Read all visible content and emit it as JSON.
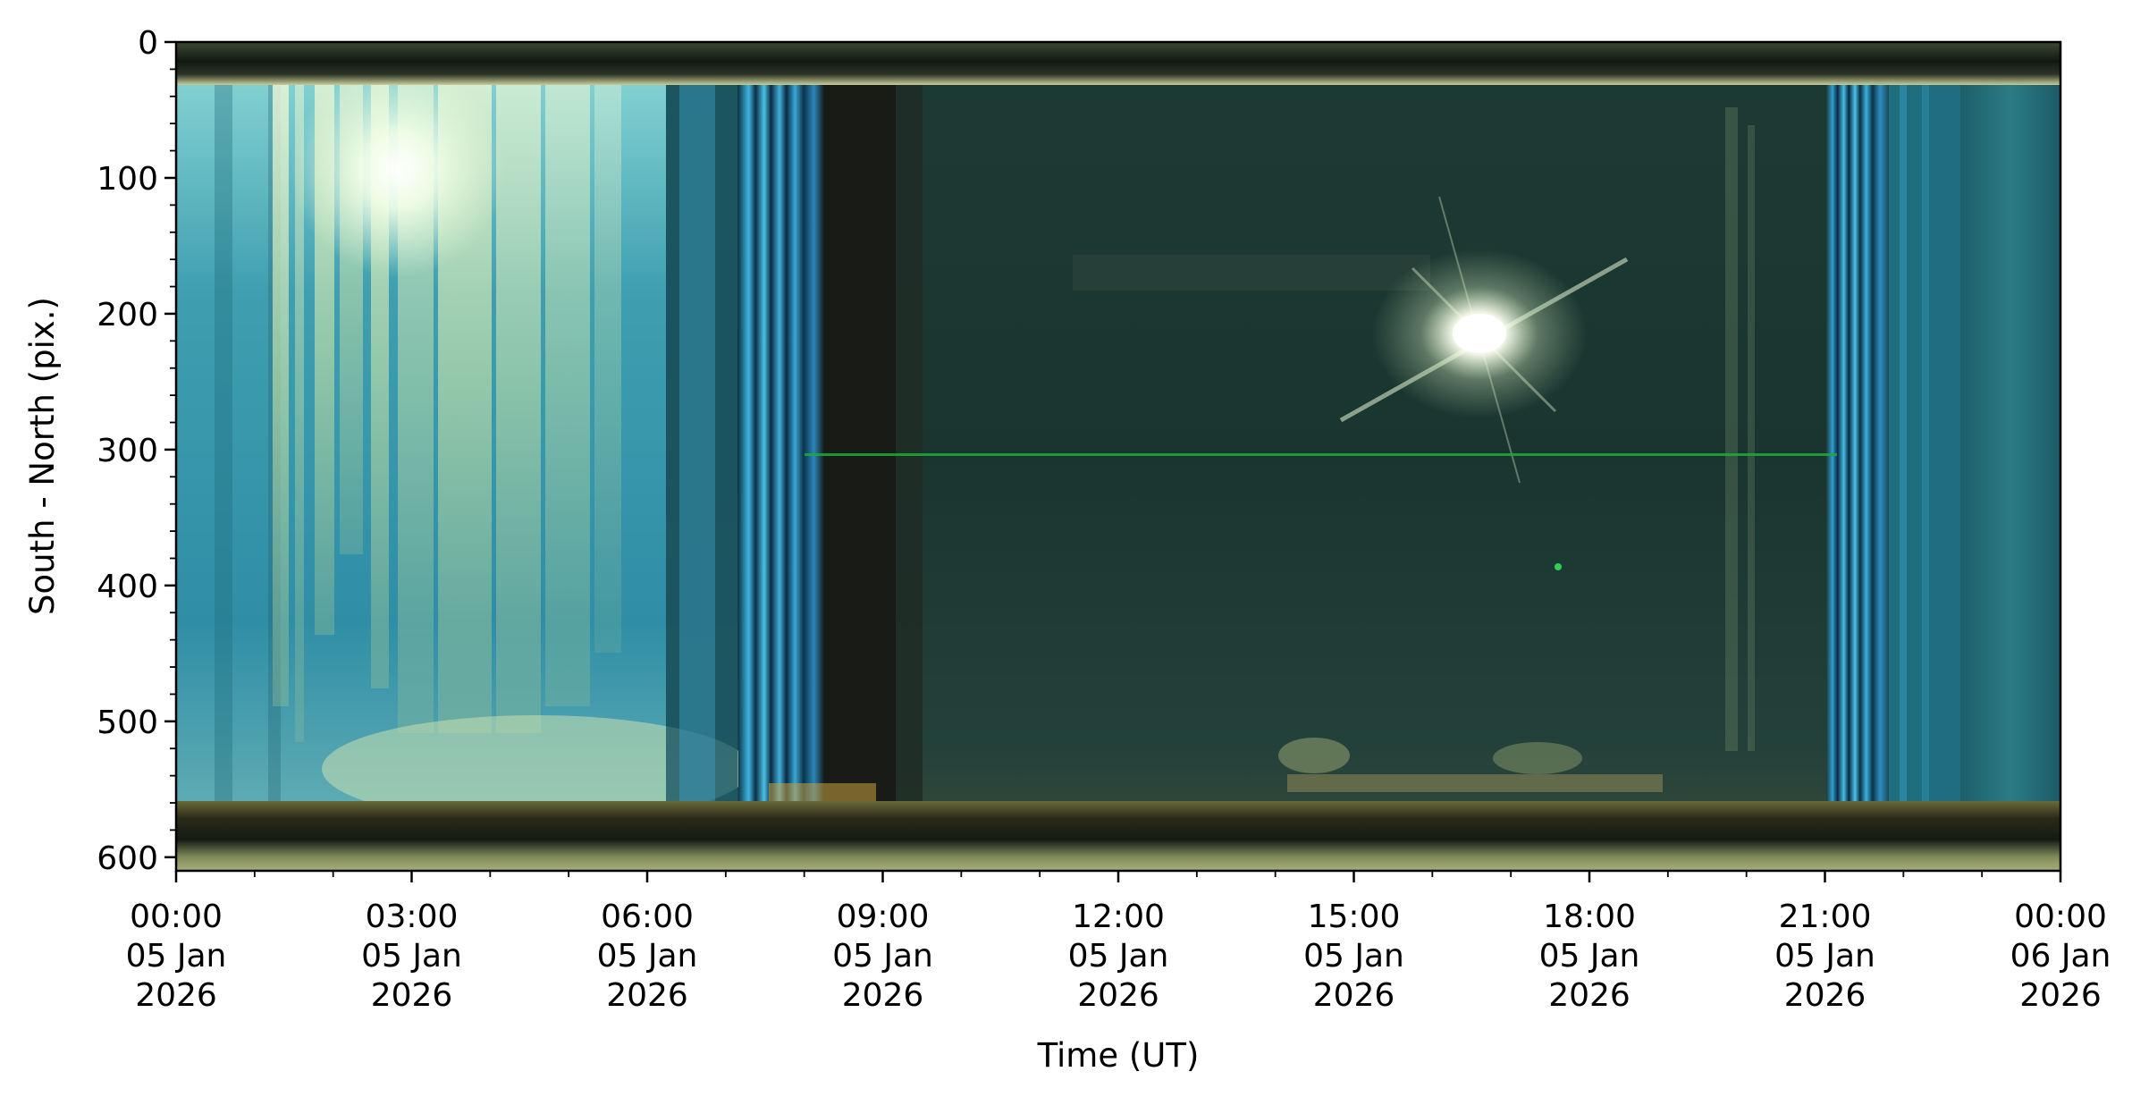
{
  "chart_data": {
    "type": "heatmap",
    "title": "",
    "xlabel": "Time (UT)",
    "ylabel": "South - North (pix.)",
    "y_axis_inverted": true,
    "ylim": [
      610,
      0
    ],
    "xlim": [
      "2026-01-05 00:00",
      "2026-01-06 00:00"
    ],
    "grid": false,
    "legend": "none",
    "y_ticks": [
      "0",
      "100",
      "200",
      "300",
      "400",
      "500",
      "600"
    ],
    "x_ticks": [
      {
        "line1": "00:00",
        "line2": "05 Jan",
        "line3": "2026"
      },
      {
        "line1": "03:00",
        "line2": "05 Jan",
        "line3": "2026"
      },
      {
        "line1": "06:00",
        "line2": "05 Jan",
        "line3": "2026"
      },
      {
        "line1": "09:00",
        "line2": "05 Jan",
        "line3": "2026"
      },
      {
        "line1": "12:00",
        "line2": "05 Jan",
        "line3": "2026"
      },
      {
        "line1": "15:00",
        "line2": "05 Jan",
        "line3": "2026"
      },
      {
        "line1": "18:00",
        "line2": "05 Jan",
        "line3": "2026"
      },
      {
        "line1": "21:00",
        "line2": "05 Jan",
        "line3": "2026"
      },
      {
        "line1": "00:00",
        "line2": "06 Jan",
        "line3": "2026"
      }
    ],
    "image_description": "keogram: all-sky camera north-south slice stacked over time",
    "colors": {
      "day_sky": "#1f3a34",
      "twilight_blue": "#2a8fc4",
      "cloud_glow": "#c8e6b0",
      "sun": "#ffffff",
      "horizon_band": "#4a4a2a",
      "artifact_line": "#1faa3a"
    }
  }
}
